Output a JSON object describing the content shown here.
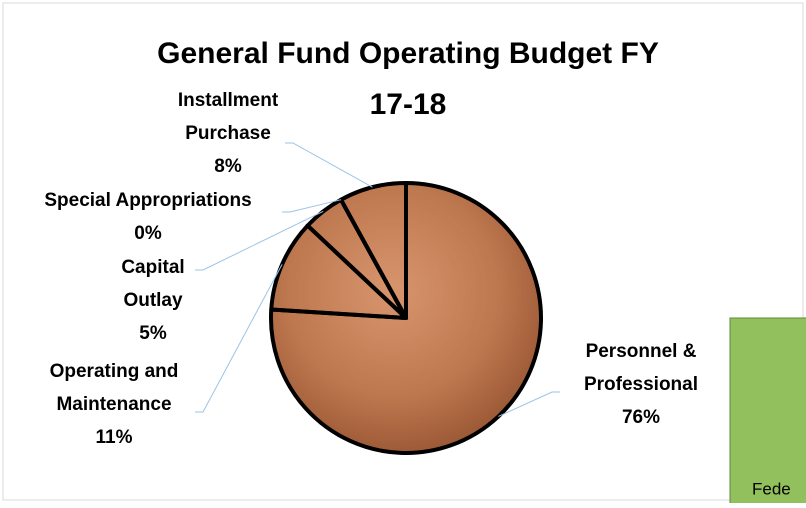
{
  "chart_data": {
    "type": "pie",
    "title": "General Fund Operating Budget FY 17-18",
    "categories": [
      "Personnel & Professional",
      "Operating and Maintenance",
      "Capital Outlay",
      "Special Appropriations",
      "Installment Purchase"
    ],
    "values": [
      76,
      11,
      5,
      0,
      8
    ],
    "value_labels": [
      "76%",
      "11%",
      "5%",
      "0%",
      "8%"
    ],
    "color": "#b87048"
  },
  "side_panel": {
    "text": "Fede"
  }
}
